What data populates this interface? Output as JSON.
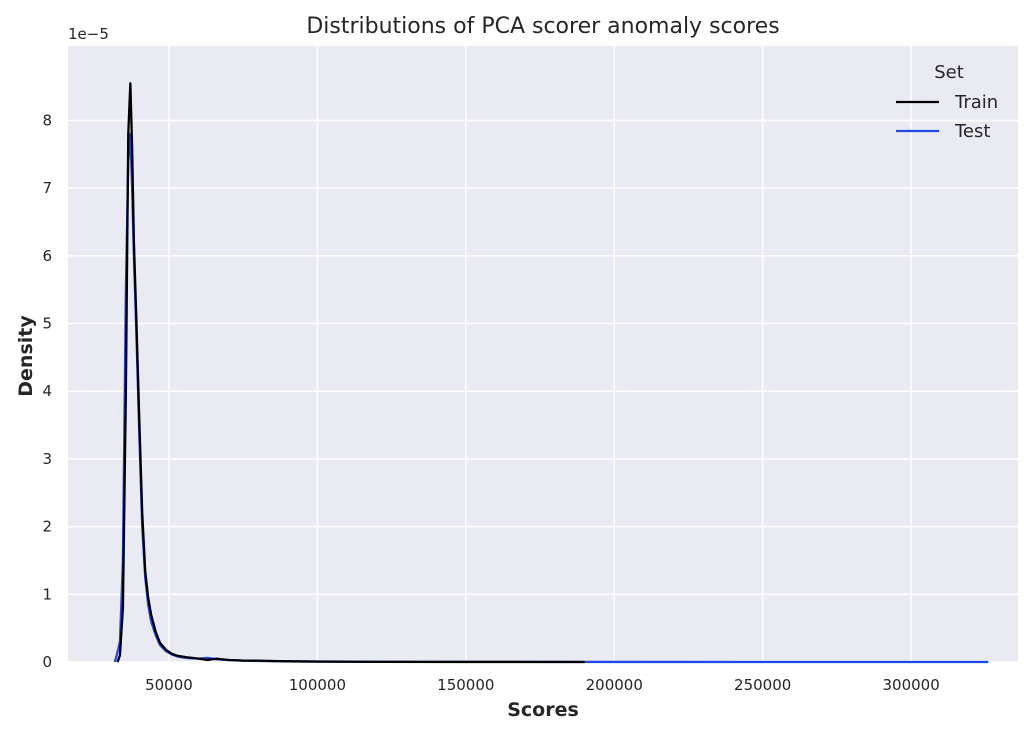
{
  "chart_data": {
    "type": "line",
    "title": "Distributions of PCA scorer anomaly scores",
    "xlabel": "Scores",
    "ylabel": "Density",
    "y_multiplier_label": "1e−5",
    "xlim": [
      16000,
      336000
    ],
    "ylim": [
      0,
      9.1
    ],
    "x_ticks": [
      50000,
      100000,
      150000,
      200000,
      250000,
      300000
    ],
    "x_tick_labels": [
      "50000",
      "100000",
      "150000",
      "200000",
      "250000",
      "300000"
    ],
    "y_ticks": [
      0,
      1,
      2,
      3,
      4,
      5,
      6,
      7,
      8
    ],
    "y_tick_labels": [
      "0",
      "1",
      "2",
      "3",
      "4",
      "5",
      "6",
      "7",
      "8"
    ],
    "grid": true,
    "background": "#eaeaf2",
    "legend": {
      "title": "Set",
      "position": "top-right"
    },
    "series": [
      {
        "name": "Train",
        "color": "#000000",
        "x": [
          32700,
          33500,
          34500,
          35500,
          36300,
          37000,
          37600,
          38200,
          39000,
          40000,
          41000,
          42000,
          43000,
          44000,
          45500,
          47000,
          49000,
          51000,
          53000,
          56000,
          60000,
          63000,
          66000,
          70000,
          75000,
          80000,
          85000,
          90000,
          100000,
          120000,
          150000,
          190000
        ],
        "y": [
          0.0,
          0.1,
          0.8,
          4.0,
          7.8,
          8.55,
          7.6,
          6.2,
          5.1,
          3.6,
          2.2,
          1.35,
          0.95,
          0.7,
          0.45,
          0.28,
          0.18,
          0.12,
          0.09,
          0.07,
          0.05,
          0.03,
          0.05,
          0.03,
          0.02,
          0.02,
          0.015,
          0.01,
          0.005,
          0.002,
          0.001,
          0.0
        ]
      },
      {
        "name": "Test",
        "color": "#1f48e6",
        "x": [
          31800,
          32700,
          33500,
          34500,
          35500,
          36300,
          37000,
          37600,
          38200,
          39000,
          40000,
          41000,
          42000,
          43000,
          44000,
          45500,
          47000,
          49000,
          51000,
          53000,
          56000,
          60000,
          63000,
          66000,
          70000,
          75000,
          80000,
          90000,
          120000,
          160000,
          200000,
          250000,
          300000,
          326000
        ],
        "y": [
          0.0,
          0.15,
          0.3,
          1.5,
          5.5,
          7.4,
          7.8,
          7.0,
          6.0,
          4.9,
          3.4,
          2.0,
          1.25,
          0.85,
          0.6,
          0.4,
          0.25,
          0.16,
          0.11,
          0.08,
          0.06,
          0.05,
          0.06,
          0.04,
          0.03,
          0.02,
          0.015,
          0.01,
          0.004,
          0.002,
          0.001,
          0.0,
          0.0,
          0.0
        ]
      }
    ]
  }
}
